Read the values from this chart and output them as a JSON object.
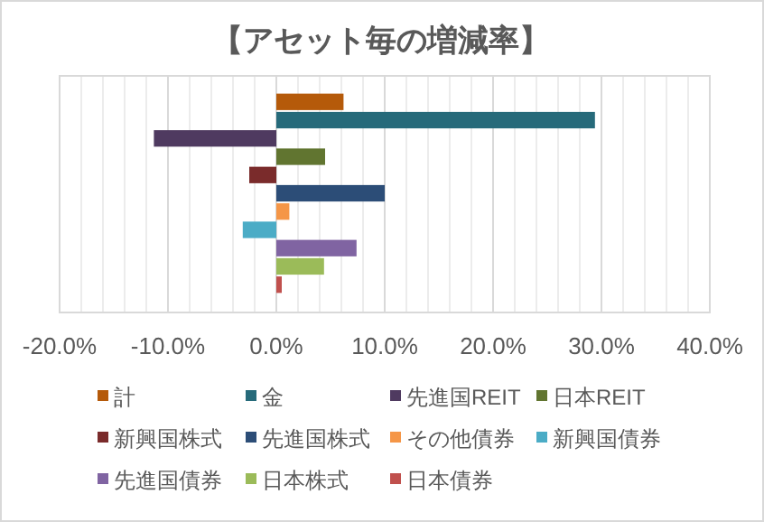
{
  "chart_data": {
    "type": "bar",
    "orientation": "horizontal",
    "title": "【アセット毎の増減率】",
    "categories": [
      null
    ],
    "series": [
      {
        "name": "計",
        "color": "#b55a0a",
        "values": [
          6.2
        ]
      },
      {
        "name": "金",
        "color": "#266a7a",
        "values": [
          29.4
        ]
      },
      {
        "name": "先進国REIT",
        "color": "#4f3a60",
        "values": [
          -11.3
        ]
      },
      {
        "name": "日本REIT",
        "color": "#617530",
        "values": [
          4.5
        ]
      },
      {
        "name": "新興国株式",
        "color": "#7a2b2b",
        "values": [
          -2.5
        ]
      },
      {
        "name": "先進国株式",
        "color": "#2c4d77",
        "values": [
          10.0
        ]
      },
      {
        "name": "その他債券",
        "color": "#f59647",
        "values": [
          1.2
        ]
      },
      {
        "name": "新興国債券",
        "color": "#4bacc6",
        "values": [
          -3.1
        ]
      },
      {
        "name": "先進国債券",
        "color": "#8064a2",
        "values": [
          7.4
        ]
      },
      {
        "name": "日本株式",
        "color": "#9bbb59",
        "values": [
          4.4
        ]
      },
      {
        "name": "日本債券",
        "color": "#c0504d",
        "values": [
          0.5
        ]
      }
    ],
    "xlim": [
      -20,
      40
    ],
    "xticks": [
      {
        "value": -20,
        "label": "-20.0%"
      },
      {
        "value": -18,
        "label": null
      },
      {
        "value": -16,
        "label": null
      },
      {
        "value": -14,
        "label": null
      },
      {
        "value": -12,
        "label": null
      },
      {
        "value": -10,
        "label": "-10.0%"
      },
      {
        "value": -8,
        "label": null
      },
      {
        "value": -6,
        "label": null
      },
      {
        "value": -4,
        "label": null
      },
      {
        "value": -2,
        "label": null
      },
      {
        "value": 0,
        "label": "0.0%"
      },
      {
        "value": 2,
        "label": null
      },
      {
        "value": 4,
        "label": null
      },
      {
        "value": 6,
        "label": null
      },
      {
        "value": 8,
        "label": null
      },
      {
        "value": 10,
        "label": "10.0%"
      },
      {
        "value": 12,
        "label": null
      },
      {
        "value": 14,
        "label": null
      },
      {
        "value": 16,
        "label": null
      },
      {
        "value": 18,
        "label": null
      },
      {
        "value": 20,
        "label": "20.0%"
      },
      {
        "value": 22,
        "label": null
      },
      {
        "value": 24,
        "label": null
      },
      {
        "value": 26,
        "label": null
      },
      {
        "value": 28,
        "label": null
      },
      {
        "value": 30,
        "label": "30.0%"
      },
      {
        "value": 32,
        "label": null
      },
      {
        "value": 34,
        "label": null
      },
      {
        "value": 36,
        "label": null
      },
      {
        "value": 38,
        "label": null
      },
      {
        "value": 40,
        "label": "40.0%"
      }
    ],
    "grid": "x",
    "legend": "bottom"
  }
}
